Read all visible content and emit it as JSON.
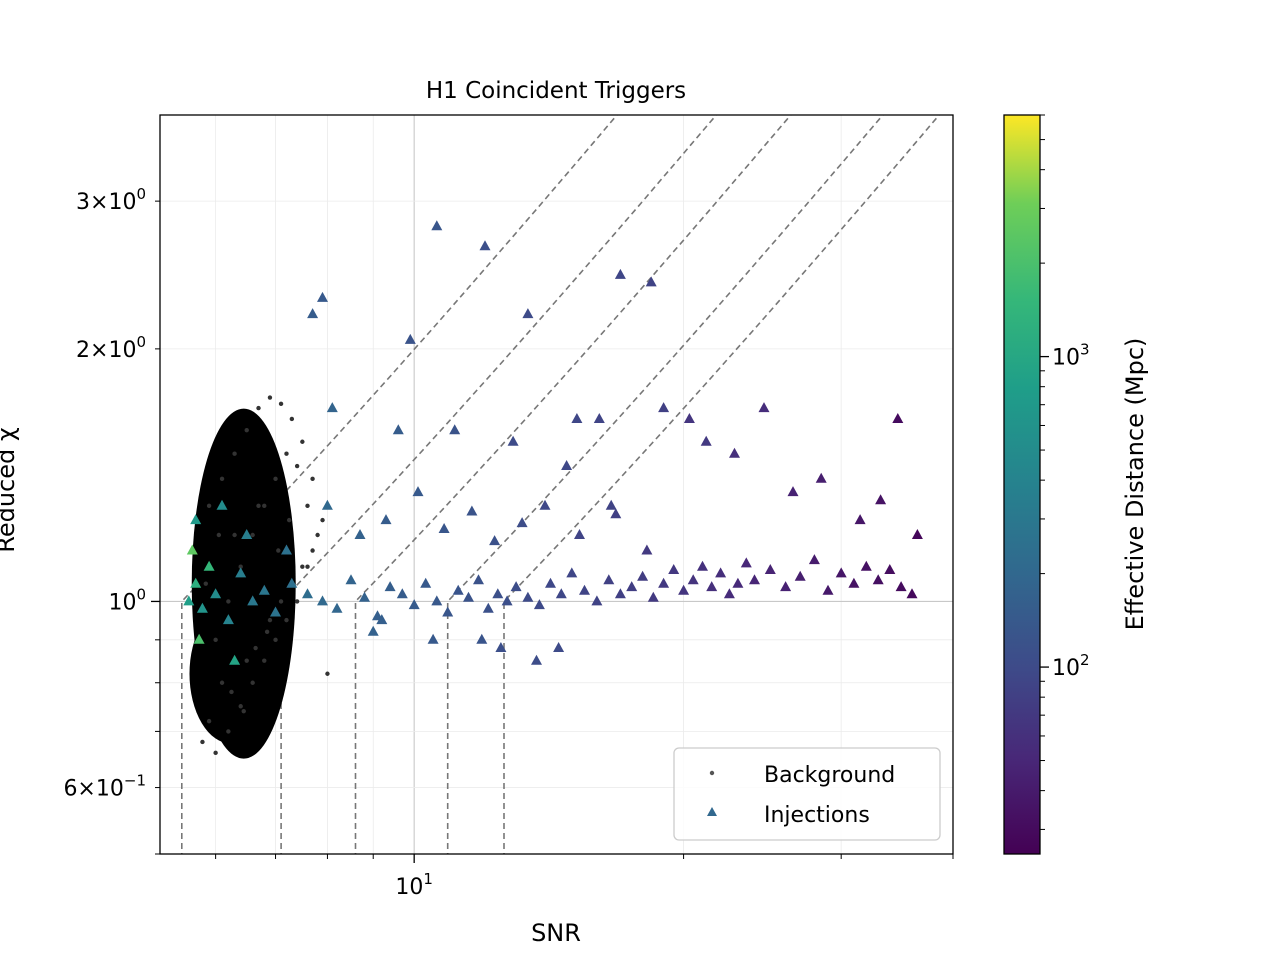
{
  "chart_data": {
    "type": "scatter",
    "title": "H1 Coincident Triggers",
    "xlabel": "SNR",
    "ylabel": "Reduced χ",
    "x_scale": "log",
    "y_scale": "log",
    "xlim": [
      5.2,
      40
    ],
    "ylim": [
      0.5,
      3.8
    ],
    "grid": true,
    "x_tick_labels": [
      {
        "value": 10,
        "base": "10",
        "exp": "1"
      }
    ],
    "y_tick_labels": [
      {
        "value": 3,
        "mant": "3",
        "base": "10",
        "exp": "0"
      },
      {
        "value": 2,
        "mant": "2",
        "base": "10",
        "exp": "0"
      },
      {
        "value": 1,
        "mant": "",
        "base": "10",
        "exp": "0"
      },
      {
        "value": 0.6,
        "mant": "6",
        "base": "10",
        "exp": "−1"
      }
    ],
    "legend": {
      "placement": "lower-right",
      "entries": [
        {
          "label": "Background",
          "marker": "dot",
          "color": "#555555"
        },
        {
          "label": "Injections",
          "marker": "triangle",
          "color": "#31688e"
        }
      ]
    },
    "colorbar": {
      "label": "Effective Distance (Mpc)",
      "scale": "log",
      "range": [
        25,
        6000
      ],
      "colormap": "viridis",
      "tick_labels": [
        {
          "value": 100,
          "base": "10",
          "exp": "2"
        },
        {
          "value": 1000,
          "base": "10",
          "exp": "3"
        }
      ]
    },
    "threshold_curves": {
      "style": "dashed",
      "color": "#777777",
      "snr_start": [
        5.5,
        7.1,
        8.6,
        10.9,
        12.6
      ]
    },
    "series": [
      {
        "name": "Background",
        "marker": "dot",
        "color": "#111111",
        "x": [
          5.8,
          5.9,
          6.0,
          6.2,
          6.4,
          6.6,
          6.8,
          7.0,
          7.2,
          7.4,
          7.6,
          7.8,
          5.9,
          6.1,
          6.3,
          6.5,
          6.7,
          6.9,
          7.1,
          7.3,
          7.5,
          7.7,
          6.0,
          6.2,
          6.4,
          6.6,
          6.8,
          7.0,
          7.2,
          7.4,
          7.6,
          6.1,
          6.5,
          6.9,
          7.3,
          7.7,
          7.9,
          8.0,
          6.3,
          6.7,
          7.1,
          7.5,
          5.85,
          6.05,
          6.25,
          6.45,
          6.65,
          6.85,
          7.05,
          7.25
        ],
        "y": [
          0.68,
          0.72,
          0.66,
          0.7,
          0.75,
          0.8,
          0.85,
          0.9,
          0.95,
          1.0,
          1.1,
          1.2,
          1.3,
          1.4,
          1.5,
          1.6,
          1.7,
          1.75,
          1.72,
          1.65,
          1.55,
          1.4,
          0.9,
          1.0,
          1.1,
          1.2,
          1.3,
          1.4,
          1.5,
          1.45,
          1.3,
          0.8,
          0.85,
          0.95,
          1.05,
          1.15,
          1.25,
          0.82,
          1.2,
          1.3,
          1.0,
          1.1,
          1.05,
          1.2,
          0.78,
          0.74,
          0.88,
          0.92,
          1.15,
          1.25
        ]
      },
      {
        "name": "Injections",
        "marker": "triangle",
        "colored_by": "Effective Distance (Mpc)",
        "x": [
          5.6,
          5.7,
          5.8,
          5.9,
          6.0,
          6.2,
          6.4,
          6.6,
          6.8,
          7.0,
          7.3,
          7.6,
          7.9,
          8.2,
          8.5,
          8.8,
          9.1,
          9.4,
          9.7,
          10.0,
          10.3,
          10.6,
          10.9,
          11.2,
          11.5,
          11.8,
          12.1,
          12.4,
          12.7,
          13.0,
          13.4,
          13.8,
          14.2,
          14.6,
          15.0,
          15.5,
          16.0,
          16.5,
          17.0,
          17.5,
          18.0,
          18.5,
          19.0,
          19.5,
          20.0,
          20.5,
          21.0,
          21.5,
          22.0,
          22.5,
          23.0,
          23.5,
          24.0,
          25.0,
          26.0,
          27.0,
          28.0,
          29.0,
          30.0,
          31.0,
          32.0,
          33.0,
          34.0,
          35.0,
          36.0,
          5.7,
          6.1,
          6.5,
          7.2,
          8.0,
          8.7,
          9.3,
          10.1,
          10.8,
          11.6,
          12.3,
          13.2,
          14.0,
          15.3,
          16.8,
          18.2,
          7.7,
          7.9,
          10.6,
          12.0,
          17.0,
          18.4,
          9.9,
          13.4,
          15.2,
          16.1,
          19.0,
          21.2,
          24.6,
          34.7,
          36.5,
          8.1,
          9.6,
          11.1,
          12.9,
          14.8,
          16.6,
          20.3,
          22.8,
          26.5,
          28.5,
          31.5,
          33.2,
          9.0,
          10.5,
          11.9,
          13.7,
          14.5,
          5.65,
          5.75,
          6.3,
          9.2,
          12.5
        ],
        "y": [
          1.0,
          1.05,
          0.98,
          1.1,
          1.02,
          0.95,
          1.08,
          1.0,
          1.03,
          0.97,
          1.05,
          1.02,
          1.0,
          0.98,
          1.06,
          1.01,
          0.96,
          1.04,
          1.02,
          0.99,
          1.05,
          1.0,
          0.97,
          1.03,
          1.01,
          1.06,
          0.98,
          1.02,
          1.0,
          1.04,
          1.01,
          0.99,
          1.05,
          1.02,
          1.08,
          1.03,
          1.0,
          1.06,
          1.02,
          1.04,
          1.07,
          1.01,
          1.05,
          1.09,
          1.03,
          1.06,
          1.1,
          1.04,
          1.08,
          1.02,
          1.05,
          1.11,
          1.06,
          1.09,
          1.04,
          1.07,
          1.12,
          1.03,
          1.08,
          1.05,
          1.1,
          1.06,
          1.09,
          1.04,
          1.02,
          1.25,
          1.3,
          1.2,
          1.15,
          1.3,
          1.2,
          1.25,
          1.35,
          1.22,
          1.28,
          1.18,
          1.24,
          1.3,
          1.2,
          1.27,
          1.15,
          2.2,
          2.3,
          2.8,
          2.65,
          2.45,
          2.4,
          2.05,
          2.2,
          1.65,
          1.65,
          1.7,
          1.55,
          1.7,
          1.65,
          1.2,
          1.7,
          1.6,
          1.6,
          1.55,
          1.45,
          1.3,
          1.65,
          1.5,
          1.35,
          1.4,
          1.25,
          1.32,
          0.92,
          0.9,
          0.9,
          0.85,
          0.88,
          1.15,
          0.9,
          0.85,
          0.95,
          0.88
        ],
        "effective_distance_mpc": [
          800,
          1200,
          600,
          1500,
          500,
          400,
          350,
          300,
          280,
          260,
          240,
          220,
          200,
          190,
          180,
          170,
          160,
          155,
          150,
          145,
          140,
          135,
          130,
          125,
          120,
          118,
          115,
          112,
          110,
          105,
          100,
          98,
          95,
          92,
          90,
          88,
          85,
          82,
          80,
          78,
          75,
          72,
          70,
          68,
          65,
          63,
          60,
          58,
          56,
          54,
          52,
          50,
          48,
          46,
          44,
          42,
          40,
          38,
          36,
          34,
          33,
          32,
          31,
          30,
          29,
          700,
          500,
          350,
          250,
          200,
          170,
          150,
          140,
          130,
          120,
          115,
          105,
          95,
          88,
          80,
          72,
          150,
          140,
          130,
          110,
          90,
          85,
          120,
          100,
          92,
          88,
          80,
          70,
          55,
          30,
          28,
          180,
          150,
          120,
          100,
          95,
          85,
          65,
          58,
          45,
          42,
          36,
          34,
          170,
          140,
          125,
          105,
          100,
          2500,
          2000,
          900,
          160,
          110
        ]
      }
    ]
  }
}
